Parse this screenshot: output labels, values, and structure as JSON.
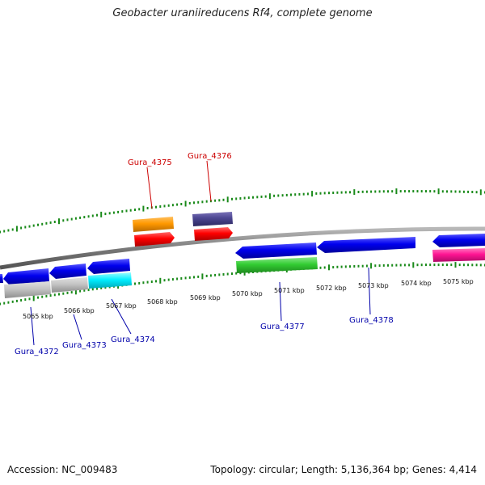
{
  "title": "Geobacter uraniireducens Rf4, complete genome",
  "footer": {
    "accession": "Accession: NC_009483",
    "summary": "Topology: circular; Length: 5,136,364 bp; Genes: 4,414"
  },
  "colors": {
    "backbone": "#8a8a8a",
    "tick": "#1a8a1a",
    "forward_label": "#cc0000",
    "reverse_label": "#0000aa"
  },
  "scale_labels": [
    "5065 kbp",
    "5066 kbp",
    "5067 kbp",
    "5068 kbp",
    "5069 kbp",
    "5070 kbp",
    "5071 kbp",
    "5072 kbp",
    "5073 kbp",
    "5074 kbp",
    "5075 kbp"
  ],
  "genes": [
    {
      "name": "Gura_4372",
      "strand": "reverse",
      "color": "#0000ee"
    },
    {
      "name": "Gura_4373",
      "strand": "reverse",
      "color": "#0000ee"
    },
    {
      "name": "Gura_4374",
      "strand": "reverse",
      "color": "#0000ee"
    },
    {
      "name": "Gura_4375",
      "strand": "forward",
      "color": "#ff0000"
    },
    {
      "name": "Gura_4376",
      "strand": "forward",
      "color": "#ff0000"
    },
    {
      "name": "Gura_4377",
      "strand": "reverse",
      "color": "#0000ee"
    },
    {
      "name": "Gura_4378",
      "strand": "reverse",
      "color": "#0000ee"
    }
  ]
}
